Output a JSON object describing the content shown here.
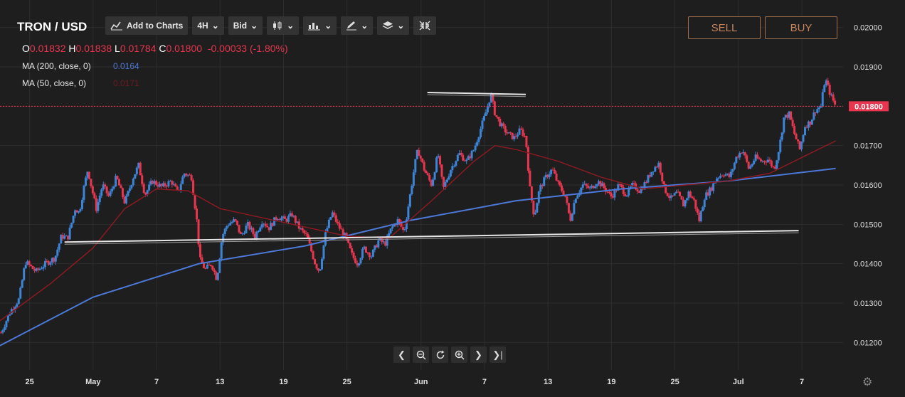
{
  "header": {
    "symbol": "TRON / USD",
    "add_to_charts": "Add to Charts",
    "timeframe": "4H",
    "price_type": "Bid"
  },
  "ohlc": {
    "o_label": "O",
    "o": "0.01832",
    "h_label": "H",
    "h": "0.01838",
    "l_label": "L",
    "l": "0.01784",
    "c_label": "C",
    "c": "0.01800",
    "change": "-0.00033 (-1.80%)"
  },
  "indicators": [
    {
      "label": "MA (200, close, 0)",
      "value": "0.0164",
      "color": "#4c78d8"
    },
    {
      "label": "MA (50, close, 0)",
      "value": "0.0171",
      "color": "#8b1a22"
    }
  ],
  "buttons": {
    "sell": "SELL",
    "buy": "BUY"
  },
  "colors": {
    "up": "#3d84d6",
    "down": "#e8364f",
    "background": "#1e1e1e",
    "ma200": "#4c78d8",
    "ma50": "#8b1a22",
    "trendline": "#e6e6e6"
  },
  "chart_data": {
    "type": "candlestick",
    "title": "TRON / USD",
    "interval": "4H",
    "y_ticks": [
      "0.01200",
      "0.01300",
      "0.01400",
      "0.01500",
      "0.01600",
      "0.01700",
      "0.01800",
      "0.01900",
      "0.02000"
    ],
    "ylim": [
      0.0113,
      0.0207
    ],
    "x_ticks": [
      "25",
      "May",
      "7",
      "13",
      "19",
      "25",
      "Jun",
      "7",
      "13",
      "19",
      "25",
      "Jul",
      "7"
    ],
    "x_tick_days": [
      -6,
      0,
      6,
      12,
      18,
      24,
      31,
      37,
      43,
      49,
      55,
      61,
      67
    ],
    "xlim_days": [
      -8.8,
      70.9
    ],
    "last_price": "0.01800",
    "price_path": [
      [
        -8.7,
        0.01225
      ],
      [
        -7.8,
        0.0128
      ],
      [
        -7.0,
        0.0131
      ],
      [
        -6.4,
        0.01405
      ],
      [
        -5.4,
        0.0138
      ],
      [
        -4.5,
        0.014
      ],
      [
        -3.6,
        0.01415
      ],
      [
        -3.0,
        0.0147
      ],
      [
        -2.4,
        0.01465
      ],
      [
        -1.7,
        0.0154
      ],
      [
        -1.3,
        0.0153
      ],
      [
        -0.9,
        0.0159
      ],
      [
        -0.5,
        0.0164
      ],
      [
        -0.2,
        0.016
      ],
      [
        0.3,
        0.0154
      ],
      [
        0.9,
        0.016
      ],
      [
        1.5,
        0.0157
      ],
      [
        2.2,
        0.0162
      ],
      [
        3.0,
        0.01555
      ],
      [
        3.8,
        0.0162
      ],
      [
        4.3,
        0.0165
      ],
      [
        4.9,
        0.01575
      ],
      [
        5.6,
        0.0161
      ],
      [
        6.5,
        0.01595
      ],
      [
        7.4,
        0.0161
      ],
      [
        8.0,
        0.0158
      ],
      [
        8.6,
        0.0163
      ],
      [
        9.3,
        0.0162
      ],
      [
        9.8,
        0.0151
      ],
      [
        10.1,
        0.0141
      ],
      [
        10.6,
        0.01385
      ],
      [
        11.2,
        0.014
      ],
      [
        11.7,
        0.0136
      ],
      [
        12.2,
        0.0147
      ],
      [
        12.7,
        0.015
      ],
      [
        13.4,
        0.0151
      ],
      [
        14.0,
        0.0147
      ],
      [
        14.6,
        0.015
      ],
      [
        15.3,
        0.0147
      ],
      [
        16.0,
        0.0151
      ],
      [
        16.6,
        0.0149
      ],
      [
        17.4,
        0.0152
      ],
      [
        18.2,
        0.0151
      ],
      [
        18.8,
        0.01525
      ],
      [
        19.5,
        0.0149
      ],
      [
        20.2,
        0.0147
      ],
      [
        21.0,
        0.014
      ],
      [
        21.4,
        0.0138
      ],
      [
        22.0,
        0.0148
      ],
      [
        22.6,
        0.0153
      ],
      [
        23.2,
        0.01495
      ],
      [
        23.8,
        0.0147
      ],
      [
        24.5,
        0.0142
      ],
      [
        25.0,
        0.014
      ],
      [
        25.6,
        0.0144
      ],
      [
        26.3,
        0.0142
      ],
      [
        27.0,
        0.0146
      ],
      [
        27.6,
        0.0145
      ],
      [
        28.2,
        0.0149
      ],
      [
        28.8,
        0.0151
      ],
      [
        29.4,
        0.0148
      ],
      [
        30.0,
        0.0158
      ],
      [
        30.4,
        0.0165
      ],
      [
        30.7,
        0.0169
      ],
      [
        31.3,
        0.0164
      ],
      [
        32.0,
        0.016
      ],
      [
        32.6,
        0.0168
      ],
      [
        33.1,
        0.0159
      ],
      [
        33.8,
        0.0164
      ],
      [
        34.6,
        0.0168
      ],
      [
        35.3,
        0.0166
      ],
      [
        36.0,
        0.0169
      ],
      [
        36.6,
        0.0174
      ],
      [
        37.2,
        0.0179
      ],
      [
        37.6,
        0.0183
      ],
      [
        38.0,
        0.0178
      ],
      [
        38.6,
        0.0175
      ],
      [
        39.2,
        0.0173
      ],
      [
        39.8,
        0.0172
      ],
      [
        40.4,
        0.0174
      ],
      [
        40.9,
        0.0172
      ],
      [
        41.3,
        0.0159
      ],
      [
        41.7,
        0.0152
      ],
      [
        42.2,
        0.0159
      ],
      [
        42.8,
        0.0162
      ],
      [
        43.4,
        0.0164
      ],
      [
        44.0,
        0.016
      ],
      [
        44.6,
        0.01575
      ],
      [
        45.1,
        0.0151
      ],
      [
        45.6,
        0.0157
      ],
      [
        46.3,
        0.016
      ],
      [
        47.0,
        0.0159
      ],
      [
        47.7,
        0.0161
      ],
      [
        48.4,
        0.0159
      ],
      [
        49.0,
        0.0157
      ],
      [
        49.7,
        0.016
      ],
      [
        50.4,
        0.01575
      ],
      [
        51.0,
        0.016
      ],
      [
        51.7,
        0.01585
      ],
      [
        52.3,
        0.0161
      ],
      [
        52.9,
        0.0164
      ],
      [
        53.5,
        0.01655
      ],
      [
        54.0,
        0.0159
      ],
      [
        54.6,
        0.01565
      ],
      [
        55.2,
        0.0158
      ],
      [
        55.8,
        0.0155
      ],
      [
        56.3,
        0.0158
      ],
      [
        56.8,
        0.0156
      ],
      [
        57.3,
        0.0151
      ],
      [
        57.8,
        0.0157
      ],
      [
        58.4,
        0.0159
      ],
      [
        59.0,
        0.0162
      ],
      [
        59.6,
        0.0163
      ],
      [
        60.2,
        0.0162
      ],
      [
        60.8,
        0.0167
      ],
      [
        61.4,
        0.0169
      ],
      [
        62.0,
        0.0164
      ],
      [
        62.6,
        0.0167
      ],
      [
        63.2,
        0.0166
      ],
      [
        63.8,
        0.01665
      ],
      [
        64.4,
        0.0164
      ],
      [
        64.9,
        0.017
      ],
      [
        65.3,
        0.0177
      ],
      [
        65.8,
        0.0178
      ],
      [
        66.3,
        0.0173
      ],
      [
        66.8,
        0.0169
      ],
      [
        67.3,
        0.0175
      ],
      [
        67.8,
        0.0176
      ],
      [
        68.3,
        0.0179
      ],
      [
        68.8,
        0.018
      ],
      [
        69.2,
        0.0187
      ],
      [
        69.7,
        0.0183
      ],
      [
        70.2,
        0.018
      ]
    ],
    "ma200_path": [
      [
        -8.8,
        0.01192
      ],
      [
        0,
        0.01315
      ],
      [
        10,
        0.014
      ],
      [
        20,
        0.01445
      ],
      [
        30,
        0.0151
      ],
      [
        40,
        0.0156
      ],
      [
        50,
        0.0159
      ],
      [
        60,
        0.0161
      ],
      [
        70.2,
        0.01642
      ]
    ],
    "ma50_path": [
      [
        -8.8,
        0.01255
      ],
      [
        -4,
        0.0135
      ],
      [
        0,
        0.0144
      ],
      [
        3,
        0.0154
      ],
      [
        6,
        0.0159
      ],
      [
        9,
        0.01585
      ],
      [
        12,
        0.0154
      ],
      [
        18,
        0.01505
      ],
      [
        24,
        0.0147
      ],
      [
        28,
        0.01465
      ],
      [
        32,
        0.0156
      ],
      [
        36,
        0.0166
      ],
      [
        38,
        0.017
      ],
      [
        40,
        0.0169
      ],
      [
        44,
        0.0166
      ],
      [
        48,
        0.0162
      ],
      [
        52,
        0.0159
      ],
      [
        56,
        0.016
      ],
      [
        60,
        0.0161
      ],
      [
        64,
        0.0163
      ],
      [
        67,
        0.0167
      ],
      [
        70.2,
        0.01712
      ]
    ],
    "trendlines": [
      {
        "from": [
          -2.7,
          0.01455
        ],
        "to": [
          66.7,
          0.01484
        ]
      },
      {
        "from": [
          31.6,
          0.01835
        ],
        "to": [
          40.9,
          0.0183
        ]
      }
    ]
  }
}
